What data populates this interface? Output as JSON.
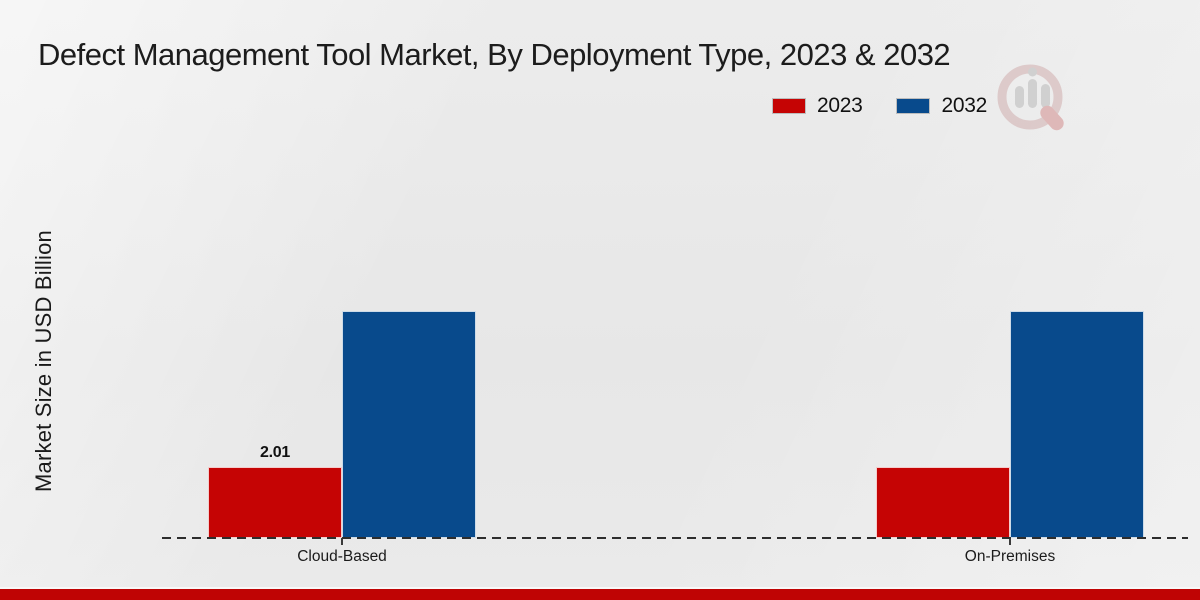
{
  "title": "Defect Management Tool Market, By Deployment Type, 2023 & 2032",
  "ylabel": "Market Size in USD Billion",
  "legend": {
    "items": [
      {
        "label": "2023",
        "color": "#c50404"
      },
      {
        "label": "2032",
        "color": "#084a8c"
      }
    ]
  },
  "chart_data": {
    "type": "bar",
    "title": "Defect Management Tool Market, By Deployment Type, 2023 & 2032",
    "categories": [
      "Cloud-Based",
      "On-Premises"
    ],
    "series": [
      {
        "name": "2023",
        "color": "#c50404",
        "values": [
          2.01,
          2.0
        ],
        "data_labels": [
          "2.01",
          ""
        ]
      },
      {
        "name": "2032",
        "color": "#084a8c",
        "values": [
          6.4,
          6.4
        ],
        "data_labels": [
          "",
          ""
        ]
      }
    ],
    "xlabel": "",
    "ylabel": "Market Size in USD Billion",
    "ylim": [
      0,
      6.4
    ],
    "grid": false,
    "legend_position": "top-right",
    "baseline_style": "dashed",
    "y_axis_ticks_visible": false
  },
  "watermark": {
    "name": "market-research-logo"
  },
  "footer": {
    "stripe_color": "#bf0404"
  }
}
